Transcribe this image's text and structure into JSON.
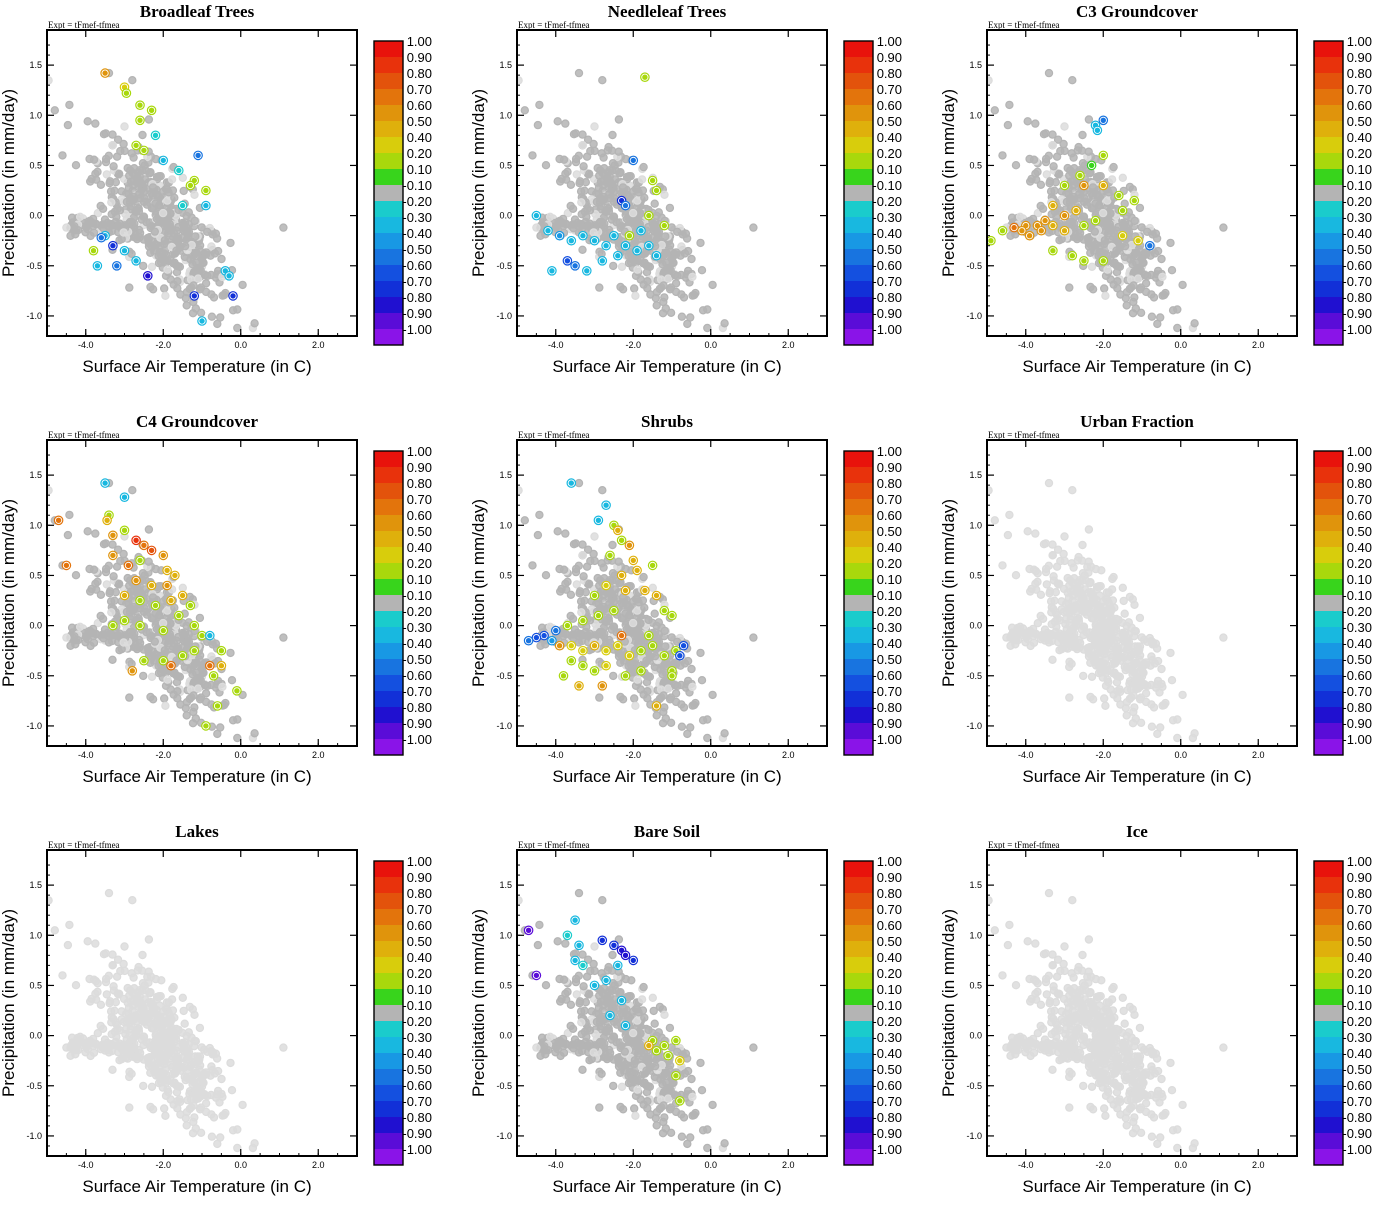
{
  "figure": {
    "expt_label": "Expt = tFmef-tfmea",
    "xlabel": "Surface Air Temperature (in C)",
    "ylabel": "Precipitation (in mm/day)",
    "x_ticks": [
      "-4.0",
      "-2.0",
      "0.0",
      "2.0"
    ],
    "y_ticks": [
      "1.5",
      "1.0",
      "0.5",
      "0.0",
      "-0.5",
      "-1.0"
    ]
  },
  "colorbar": {
    "labels": [
      "1.00",
      "0.90",
      "0.80",
      "0.70",
      "0.60",
      "0.50",
      "0.40",
      "0.20",
      "0.10",
      "-0.10",
      "-0.20",
      "-0.30",
      "-0.40",
      "-0.50",
      "-0.60",
      "-0.70",
      "-0.80",
      "-0.90",
      "-1.00"
    ],
    "colors": [
      "#e8120c",
      "#e8320c",
      "#e3530c",
      "#e3740c",
      "#e0940c",
      "#dfb00c",
      "#d8cd0c",
      "#a8d80c",
      "#38d41c",
      "#b4b4b4",
      "#1acccc",
      "#18b8e0",
      "#1898e4",
      "#1874e0",
      "#1450e0",
      "#1230d8",
      "#2010d0",
      "#5a0cd8",
      "#8a14e8"
    ],
    "neutral_color": "#b4b4b4",
    "background_point_color": "#dcdcdc"
  },
  "chart_data": [
    {
      "type": "scatter",
      "title": "Broadleaf Trees",
      "xlim": [
        -5.0,
        3.0
      ],
      "ylim": [
        -1.2,
        1.85
      ],
      "xlabel": "Surface Air Temperature (in C)",
      "ylabel": "Precipitation (in mm/day)",
      "points": [
        [
          -3.5,
          1.42,
          0.6
        ],
        [
          -3.0,
          1.28,
          0.4
        ],
        [
          -2.95,
          1.22,
          0.2
        ],
        [
          -2.6,
          1.1,
          0.2
        ],
        [
          -2.3,
          1.05,
          0.2
        ],
        [
          -2.6,
          0.95,
          0.2
        ],
        [
          -2.2,
          0.8,
          -0.2
        ],
        [
          -2.7,
          0.7,
          0.2
        ],
        [
          -2.5,
          0.65,
          0.2
        ],
        [
          -1.1,
          0.6,
          -0.5
        ],
        [
          -2.0,
          0.55,
          -0.3
        ],
        [
          -1.6,
          0.45,
          -0.2
        ],
        [
          -1.2,
          0.35,
          0.2
        ],
        [
          -1.3,
          0.3,
          0.2
        ],
        [
          -0.9,
          0.25,
          0.2
        ],
        [
          -1.5,
          0.1,
          -0.2
        ],
        [
          -0.9,
          0.1,
          -0.3
        ],
        [
          -3.5,
          -0.2,
          -0.3
        ],
        [
          -3.6,
          -0.22,
          -0.5
        ],
        [
          -3.3,
          -0.3,
          -0.7
        ],
        [
          -3.0,
          -0.35,
          -0.3
        ],
        [
          -2.7,
          -0.45,
          -0.3
        ],
        [
          -3.2,
          -0.5,
          -0.5
        ],
        [
          -2.4,
          -0.6,
          -0.8
        ],
        [
          -3.8,
          -0.35,
          0.2
        ],
        [
          -3.7,
          -0.5,
          -0.3
        ],
        [
          -1.2,
          -0.8,
          -0.7
        ],
        [
          -0.2,
          -0.8,
          -0.7
        ],
        [
          -1.0,
          -1.05,
          -0.3
        ],
        [
          -0.4,
          -0.55,
          -0.3
        ],
        [
          -0.3,
          -0.6,
          -0.3
        ]
      ]
    },
    {
      "type": "scatter",
      "title": "Needleleaf Trees",
      "xlim": [
        -5.0,
        3.0
      ],
      "ylim": [
        -1.2,
        1.85
      ],
      "xlabel": "Surface Air Temperature (in C)",
      "ylabel": "Precipitation (in mm/day)",
      "points": [
        [
          -1.7,
          1.38,
          0.2
        ],
        [
          -2.0,
          0.55,
          -0.5
        ],
        [
          -1.5,
          0.35,
          0.3
        ],
        [
          -1.4,
          0.25,
          0.3
        ],
        [
          -2.3,
          0.15,
          -0.7
        ],
        [
          -2.2,
          0.1,
          -0.5
        ],
        [
          -1.6,
          0.0,
          0.2
        ],
        [
          -1.2,
          -0.1,
          0.3
        ],
        [
          -4.5,
          -0.0,
          -0.3
        ],
        [
          -4.2,
          -0.15,
          -0.3
        ],
        [
          -3.9,
          -0.2,
          -0.4
        ],
        [
          -3.6,
          -0.25,
          -0.3
        ],
        [
          -3.3,
          -0.2,
          -0.3
        ],
        [
          -3.0,
          -0.25,
          -0.3
        ],
        [
          -2.7,
          -0.3,
          -0.3
        ],
        [
          -2.5,
          -0.2,
          -0.3
        ],
        [
          -2.2,
          -0.3,
          -0.3
        ],
        [
          -1.9,
          -0.35,
          -0.3
        ],
        [
          -1.6,
          -0.3,
          -0.3
        ],
        [
          -1.4,
          -0.4,
          -0.3
        ],
        [
          -3.7,
          -0.45,
          -0.6
        ],
        [
          -3.5,
          -0.5,
          -0.5
        ],
        [
          -3.2,
          -0.55,
          -0.3
        ],
        [
          -4.1,
          -0.55,
          -0.3
        ],
        [
          -2.8,
          -0.45,
          -0.3
        ],
        [
          -2.4,
          -0.4,
          -0.3
        ],
        [
          -2.1,
          -0.2,
          0.2
        ],
        [
          -1.8,
          -0.15,
          -0.3
        ]
      ]
    },
    {
      "type": "scatter",
      "title": "C3 Groundcover",
      "xlim": [
        -5.0,
        3.0
      ],
      "ylim": [
        -1.2,
        1.85
      ],
      "xlabel": "Surface Air Temperature (in C)",
      "ylabel": "Precipitation (in mm/day)",
      "points": [
        [
          -2.0,
          0.95,
          -0.5
        ],
        [
          -2.2,
          0.9,
          -0.3
        ],
        [
          -2.15,
          0.85,
          -0.3
        ],
        [
          -2.0,
          0.6,
          0.2
        ],
        [
          -2.3,
          0.5,
          0.1
        ],
        [
          -2.6,
          0.4,
          0.2
        ],
        [
          -2.5,
          0.3,
          0.6
        ],
        [
          -2.0,
          0.3,
          0.5
        ],
        [
          -3.0,
          0.3,
          0.2
        ],
        [
          -1.6,
          0.2,
          0.2
        ],
        [
          -1.2,
          0.15,
          0.2
        ],
        [
          -3.3,
          0.1,
          0.5
        ],
        [
          -3.0,
          0.0,
          0.6
        ],
        [
          -2.7,
          0.05,
          0.5
        ],
        [
          -3.5,
          -0.05,
          0.6
        ],
        [
          -3.7,
          -0.1,
          0.6
        ],
        [
          -4.0,
          -0.1,
          0.6
        ],
        [
          -4.3,
          -0.12,
          0.7
        ],
        [
          -4.1,
          -0.15,
          0.6
        ],
        [
          -3.9,
          -0.2,
          0.6
        ],
        [
          -3.6,
          -0.15,
          0.6
        ],
        [
          -3.3,
          -0.1,
          0.5
        ],
        [
          -3.0,
          -0.15,
          0.5
        ],
        [
          -2.5,
          -0.1,
          0.2
        ],
        [
          -2.2,
          -0.05,
          0.2
        ],
        [
          -4.6,
          -0.15,
          0.2
        ],
        [
          -4.9,
          -0.25,
          0.2
        ],
        [
          -3.3,
          -0.35,
          0.2
        ],
        [
          -2.8,
          -0.4,
          0.2
        ],
        [
          -2.0,
          -0.45,
          0.2
        ],
        [
          -2.5,
          -0.45,
          0.2
        ],
        [
          -1.5,
          -0.2,
          0.4
        ],
        [
          -0.8,
          -0.3,
          -0.5
        ],
        [
          -1.1,
          -0.25,
          0.4
        ],
        [
          -1.5,
          0.05,
          0.2
        ]
      ]
    },
    {
      "type": "scatter",
      "title": "C4 Groundcover",
      "xlim": [
        -5.0,
        3.0
      ],
      "ylim": [
        -1.2,
        1.85
      ],
      "xlabel": "Surface Air Temperature (in C)",
      "ylabel": "Precipitation (in mm/day)",
      "points": [
        [
          -3.5,
          1.42,
          -0.3
        ],
        [
          -3.0,
          1.28,
          -0.3
        ],
        [
          -3.4,
          1.1,
          0.2
        ],
        [
          -3.45,
          1.05,
          0.5
        ],
        [
          -4.7,
          1.05,
          0.7
        ],
        [
          -4.5,
          0.6,
          0.7
        ],
        [
          -3.3,
          0.9,
          0.6
        ],
        [
          -3.0,
          0.95,
          0.2
        ],
        [
          -2.7,
          0.85,
          0.9
        ],
        [
          -2.5,
          0.8,
          0.7
        ],
        [
          -2.3,
          0.75,
          0.8
        ],
        [
          -2.0,
          0.7,
          0.6
        ],
        [
          -2.6,
          0.65,
          0.2
        ],
        [
          -2.9,
          0.6,
          0.7
        ],
        [
          -3.3,
          0.7,
          0.6
        ],
        [
          -1.9,
          0.55,
          0.5
        ],
        [
          -1.7,
          0.5,
          0.5
        ],
        [
          -1.9,
          0.4,
          0.6
        ],
        [
          -2.3,
          0.4,
          0.5
        ],
        [
          -2.7,
          0.45,
          0.6
        ],
        [
          -3.0,
          0.3,
          0.5
        ],
        [
          -2.6,
          0.25,
          0.2
        ],
        [
          -2.2,
          0.2,
          0.2
        ],
        [
          -1.8,
          0.25,
          0.5
        ],
        [
          -1.5,
          0.3,
          0.5
        ],
        [
          -1.3,
          0.2,
          0.2
        ],
        [
          -3.3,
          0.0,
          0.2
        ],
        [
          -3.0,
          0.05,
          0.2
        ],
        [
          -2.6,
          0.0,
          0.2
        ],
        [
          -2.0,
          -0.05,
          0.2
        ],
        [
          -1.6,
          0.1,
          0.2
        ],
        [
          -1.2,
          0.0,
          0.2
        ],
        [
          -1.0,
          -0.1,
          0.2
        ],
        [
          -0.8,
          -0.1,
          -0.3
        ],
        [
          -1.5,
          -0.3,
          0.2
        ],
        [
          -2.0,
          -0.35,
          0.2
        ],
        [
          -2.5,
          -0.35,
          0.2
        ],
        [
          -1.8,
          -0.4,
          0.7
        ],
        [
          -1.2,
          -0.25,
          0.2
        ],
        [
          -0.8,
          -0.4,
          0.7
        ],
        [
          -0.5,
          -0.4,
          0.5
        ],
        [
          -0.7,
          -0.5,
          0.2
        ],
        [
          -0.1,
          -0.65,
          0.2
        ],
        [
          -0.6,
          -0.8,
          0.2
        ],
        [
          -0.9,
          -1.0,
          0.2
        ],
        [
          -0.5,
          -0.25,
          0.2
        ],
        [
          -2.8,
          -0.45,
          0.6
        ]
      ]
    },
    {
      "type": "scatter",
      "title": "Shrubs",
      "xlim": [
        -5.0,
        3.0
      ],
      "ylim": [
        -1.2,
        1.85
      ],
      "xlabel": "Surface Air Temperature (in C)",
      "ylabel": "Precipitation (in mm/day)",
      "points": [
        [
          -3.6,
          1.42,
          -0.3
        ],
        [
          -2.7,
          1.2,
          -0.3
        ],
        [
          -2.9,
          1.05,
          -0.3
        ],
        [
          -2.5,
          1.0,
          0.2
        ],
        [
          -2.4,
          0.95,
          0.5
        ],
        [
          -2.3,
          0.85,
          0.2
        ],
        [
          -2.1,
          0.8,
          0.6
        ],
        [
          -2.6,
          0.7,
          0.2
        ],
        [
          -2.0,
          0.65,
          0.5
        ],
        [
          -1.5,
          0.6,
          0.2
        ],
        [
          -1.9,
          0.55,
          0.5
        ],
        [
          -2.3,
          0.5,
          0.5
        ],
        [
          -2.7,
          0.4,
          0.4
        ],
        [
          -3.0,
          0.3,
          0.2
        ],
        [
          -2.2,
          0.35,
          0.5
        ],
        [
          -1.7,
          0.35,
          0.5
        ],
        [
          -1.4,
          0.3,
          0.5
        ],
        [
          -1.2,
          0.15,
          0.2
        ],
        [
          -1.0,
          0.1,
          0.2
        ],
        [
          -2.5,
          0.15,
          0.2
        ],
        [
          -2.9,
          0.1,
          0.2
        ],
        [
          -3.3,
          0.05,
          0.2
        ],
        [
          -3.7,
          0.0,
          0.2
        ],
        [
          -4.0,
          -0.05,
          -0.5
        ],
        [
          -4.3,
          -0.1,
          -0.6
        ],
        [
          -4.5,
          -0.12,
          -0.6
        ],
        [
          -4.7,
          -0.15,
          -0.5
        ],
        [
          -4.1,
          -0.15,
          -0.4
        ],
        [
          -3.9,
          -0.2,
          0.6
        ],
        [
          -3.6,
          -0.2,
          0.4
        ],
        [
          -3.3,
          -0.25,
          0.4
        ],
        [
          -3.0,
          -0.2,
          0.5
        ],
        [
          -2.7,
          -0.25,
          0.4
        ],
        [
          -2.4,
          -0.2,
          0.4
        ],
        [
          -2.1,
          -0.3,
          0.4
        ],
        [
          -1.8,
          -0.25,
          0.2
        ],
        [
          -1.5,
          -0.2,
          0.2
        ],
        [
          -1.2,
          -0.3,
          0.2
        ],
        [
          -0.9,
          -0.25,
          0.2
        ],
        [
          -3.6,
          -0.35,
          0.2
        ],
        [
          -3.3,
          -0.4,
          0.2
        ],
        [
          -3.0,
          -0.45,
          0.2
        ],
        [
          -2.7,
          -0.4,
          0.4
        ],
        [
          -2.2,
          -0.5,
          0.2
        ],
        [
          -1.8,
          -0.45,
          0.2
        ],
        [
          -2.3,
          -0.1,
          0.7
        ],
        [
          -1.6,
          -0.1,
          0.2
        ],
        [
          -1.0,
          -0.45,
          0.2
        ],
        [
          -0.8,
          -0.3,
          -0.6
        ],
        [
          -1.4,
          -0.8,
          0.5
        ],
        [
          -2.8,
          -0.6,
          0.6
        ],
        [
          -3.4,
          -0.6,
          0.5
        ],
        [
          -3.8,
          -0.5,
          0.2
        ],
        [
          -1.0,
          -0.5,
          0.2
        ],
        [
          -0.7,
          -0.2,
          -0.6
        ]
      ]
    },
    {
      "type": "scatter",
      "title": "Urban Fraction",
      "xlim": [
        -5.0,
        3.0
      ],
      "ylim": [
        -1.2,
        1.85
      ],
      "xlabel": "Surface Air Temperature (in C)",
      "ylabel": "Precipitation (in mm/day)",
      "points": []
    },
    {
      "type": "scatter",
      "title": "Lakes",
      "xlim": [
        -5.0,
        3.0
      ],
      "ylim": [
        -1.2,
        1.85
      ],
      "xlabel": "Surface Air Temperature (in C)",
      "ylabel": "Precipitation (in mm/day)",
      "points": []
    },
    {
      "type": "scatter",
      "title": "Bare Soil",
      "xlim": [
        -5.0,
        3.0
      ],
      "ylim": [
        -1.2,
        1.85
      ],
      "xlabel": "Surface Air Temperature (in C)",
      "ylabel": "Precipitation (in mm/day)",
      "points": [
        [
          -4.7,
          1.05,
          -0.9
        ],
        [
          -4.5,
          0.6,
          -0.9
        ],
        [
          -3.5,
          1.15,
          -0.3
        ],
        [
          -3.7,
          1.0,
          -0.2
        ],
        [
          -3.4,
          0.9,
          -0.3
        ],
        [
          -3.5,
          0.75,
          -0.3
        ],
        [
          -3.3,
          0.7,
          -0.2
        ],
        [
          -2.8,
          0.95,
          -0.7
        ],
        [
          -2.5,
          0.9,
          -0.7
        ],
        [
          -2.3,
          0.85,
          -0.8
        ],
        [
          -2.2,
          0.8,
          -0.8
        ],
        [
          -2.0,
          0.75,
          -0.7
        ],
        [
          -2.4,
          0.7,
          -0.3
        ],
        [
          -3.0,
          0.5,
          -0.3
        ],
        [
          -2.7,
          0.55,
          -0.3
        ],
        [
          -2.3,
          0.35,
          -0.3
        ],
        [
          -2.6,
          0.2,
          -0.3
        ],
        [
          -2.2,
          0.1,
          -0.3
        ],
        [
          -1.5,
          -0.05,
          0.2
        ],
        [
          -1.2,
          -0.1,
          0.2
        ],
        [
          -0.9,
          -0.05,
          0.2
        ],
        [
          -1.4,
          -0.15,
          0.2
        ],
        [
          -1.1,
          -0.2,
          0.2
        ],
        [
          -0.8,
          -0.25,
          0.4
        ],
        [
          -1.6,
          -0.1,
          0.5
        ],
        [
          -0.9,
          -0.4,
          0.2
        ],
        [
          -0.8,
          -0.65,
          0.2
        ]
      ]
    },
    {
      "type": "scatter",
      "title": "Ice",
      "xlim": [
        -5.0,
        3.0
      ],
      "ylim": [
        -1.2,
        1.85
      ],
      "xlabel": "Surface Air Temperature (in C)",
      "ylabel": "Precipitation (in mm/day)",
      "points": []
    }
  ]
}
